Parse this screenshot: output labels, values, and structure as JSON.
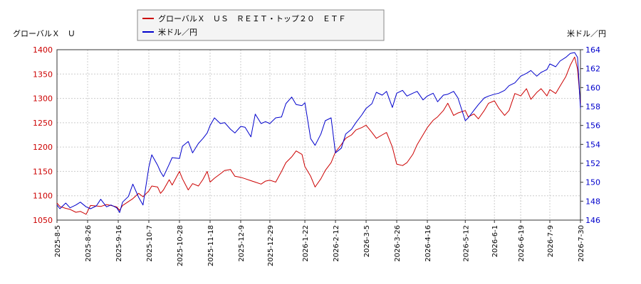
{
  "chart_data": {
    "type": "line",
    "title": "",
    "legend": {
      "placement": "top-center",
      "entries": [
        {
          "name": "グローバルＸ　ＵＳ　ＲＥＩＴ・トップ２０　ＥＴＦ",
          "color": "#cc0000"
        },
        {
          "name": "米ドル／円",
          "color": "#0000cc"
        }
      ]
    },
    "ylabel_left": "グローバルＸ　Ｕ",
    "ylabel_right": "米ドル／円",
    "ylim_left": [
      1050,
      1400
    ],
    "yticks_left": [
      "1050",
      "1100",
      "1150",
      "1200",
      "1250",
      "1300",
      "1350",
      "1400"
    ],
    "ylim_right": [
      146,
      164
    ],
    "yticks_right": [
      "146",
      "148",
      "150",
      "152",
      "154",
      "156",
      "158",
      "160",
      "162",
      "164"
    ],
    "xlim": [
      "2025-08-05",
      "2026-07-30"
    ],
    "xticks": [
      "2025-8-5",
      "2025-8-26",
      "2025-9-16",
      "2025-10-7",
      "2025-10-28",
      "2025-11-18",
      "2025-12-9",
      "2025-12-29",
      "2026-1-22",
      "2026-2-12",
      "2026-3-5",
      "2026-3-26",
      "2026-4-16",
      "2026-5-12",
      "2026-6-1",
      "2026-6-19",
      "2026-7-9",
      "2026-7-30"
    ],
    "grid": true,
    "series": [
      {
        "name": "グローバルＸ　ＵＳ　ＲＥＩＴ・トップ２０　ＥＴＦ",
        "axis": "left",
        "color": "#cc0000",
        "points": [
          [
            "2025-08-05",
            1085
          ],
          [
            "2025-08-07",
            1078
          ],
          [
            "2025-08-11",
            1074
          ],
          [
            "2025-08-14",
            1072
          ],
          [
            "2025-08-18",
            1066
          ],
          [
            "2025-08-21",
            1068
          ],
          [
            "2025-08-25",
            1062
          ],
          [
            "2025-08-28",
            1080
          ],
          [
            "2025-09-01",
            1079
          ],
          [
            "2025-09-04",
            1078
          ],
          [
            "2025-09-08",
            1082
          ],
          [
            "2025-09-11",
            1080
          ],
          [
            "2025-09-15",
            1077
          ],
          [
            "2025-09-17",
            1070
          ],
          [
            "2025-09-19",
            1080
          ],
          [
            "2025-09-23",
            1088
          ],
          [
            "2025-09-26",
            1094
          ],
          [
            "2025-09-30",
            1105
          ],
          [
            "2025-10-03",
            1098
          ],
          [
            "2025-10-07",
            1110
          ],
          [
            "2025-10-09",
            1120
          ],
          [
            "2025-10-13",
            1118
          ],
          [
            "2025-10-15",
            1105
          ],
          [
            "2025-10-17",
            1112
          ],
          [
            "2025-10-21",
            1133
          ],
          [
            "2025-10-23",
            1122
          ],
          [
            "2025-10-28",
            1150
          ],
          [
            "2025-10-30",
            1135
          ],
          [
            "2025-11-03",
            1112
          ],
          [
            "2025-11-06",
            1125
          ],
          [
            "2025-11-10",
            1120
          ],
          [
            "2025-11-13",
            1133
          ],
          [
            "2025-11-16",
            1150
          ],
          [
            "2025-11-18",
            1128
          ],
          [
            "2025-11-21",
            1136
          ],
          [
            "2025-11-25",
            1145
          ],
          [
            "2025-11-28",
            1152
          ],
          [
            "2025-12-02",
            1154
          ],
          [
            "2025-12-05",
            1140
          ],
          [
            "2025-12-09",
            1138
          ],
          [
            "2025-12-12",
            1135
          ],
          [
            "2025-12-16",
            1131
          ],
          [
            "2025-12-19",
            1128
          ],
          [
            "2025-12-23",
            1124
          ],
          [
            "2025-12-26",
            1130
          ],
          [
            "2025-12-29",
            1132
          ],
          [
            "2026-01-02",
            1128
          ],
          [
            "2026-01-06",
            1150
          ],
          [
            "2026-01-09",
            1168
          ],
          [
            "2026-01-13",
            1180
          ],
          [
            "2026-01-16",
            1192
          ],
          [
            "2026-01-20",
            1185
          ],
          [
            "2026-01-22",
            1160
          ],
          [
            "2026-01-26",
            1140
          ],
          [
            "2026-01-29",
            1118
          ],
          [
            "2026-02-02",
            1135
          ],
          [
            "2026-02-05",
            1152
          ],
          [
            "2026-02-09",
            1168
          ],
          [
            "2026-02-12",
            1190
          ],
          [
            "2026-02-16",
            1205
          ],
          [
            "2026-02-19",
            1218
          ],
          [
            "2026-02-23",
            1225
          ],
          [
            "2026-02-26",
            1235
          ],
          [
            "2026-03-02",
            1240
          ],
          [
            "2026-03-05",
            1245
          ],
          [
            "2026-03-09",
            1230
          ],
          [
            "2026-03-12",
            1218
          ],
          [
            "2026-03-16",
            1225
          ],
          [
            "2026-03-19",
            1230
          ],
          [
            "2026-03-23",
            1200
          ],
          [
            "2026-03-26",
            1165
          ],
          [
            "2026-03-30",
            1162
          ],
          [
            "2026-04-02",
            1168
          ],
          [
            "2026-04-06",
            1185
          ],
          [
            "2026-04-09",
            1205
          ],
          [
            "2026-04-13",
            1225
          ],
          [
            "2026-04-16",
            1240
          ],
          [
            "2026-04-20",
            1255
          ],
          [
            "2026-04-23",
            1262
          ],
          [
            "2026-04-27",
            1275
          ],
          [
            "2026-04-30",
            1290
          ],
          [
            "2026-05-04",
            1265
          ],
          [
            "2026-05-07",
            1270
          ],
          [
            "2026-05-12",
            1275
          ],
          [
            "2026-05-14",
            1262
          ],
          [
            "2026-05-18",
            1268
          ],
          [
            "2026-05-21",
            1258
          ],
          [
            "2026-05-25",
            1275
          ],
          [
            "2026-05-28",
            1290
          ],
          [
            "2026-06-01",
            1295
          ],
          [
            "2026-06-04",
            1280
          ],
          [
            "2026-06-08",
            1265
          ],
          [
            "2026-06-11",
            1275
          ],
          [
            "2026-06-15",
            1310
          ],
          [
            "2026-06-19",
            1305
          ],
          [
            "2026-06-23",
            1320
          ],
          [
            "2026-06-26",
            1298
          ],
          [
            "2026-06-30",
            1312
          ],
          [
            "2026-07-03",
            1320
          ],
          [
            "2026-07-07",
            1305
          ],
          [
            "2026-07-09",
            1318
          ],
          [
            "2026-07-13",
            1310
          ],
          [
            "2026-07-16",
            1325
          ],
          [
            "2026-07-20",
            1345
          ],
          [
            "2026-07-23",
            1368
          ],
          [
            "2026-07-26",
            1385
          ],
          [
            "2026-07-28",
            1360
          ],
          [
            "2026-07-30",
            1290
          ]
        ]
      },
      {
        "name": "米ドル／円",
        "axis": "right",
        "color": "#0000cc",
        "points": [
          [
            "2025-08-05",
            147.6
          ],
          [
            "2025-08-07",
            147.2
          ],
          [
            "2025-08-11",
            147.8
          ],
          [
            "2025-08-14",
            147.3
          ],
          [
            "2025-08-18",
            147.6
          ],
          [
            "2025-08-21",
            147.9
          ],
          [
            "2025-08-25",
            147.4
          ],
          [
            "2025-08-28",
            147.2
          ],
          [
            "2025-09-01",
            147.5
          ],
          [
            "2025-09-04",
            148.2
          ],
          [
            "2025-09-08",
            147.4
          ],
          [
            "2025-09-11",
            147.6
          ],
          [
            "2025-09-15",
            147.3
          ],
          [
            "2025-09-17",
            146.8
          ],
          [
            "2025-09-19",
            147.9
          ],
          [
            "2025-09-23",
            148.5
          ],
          [
            "2025-09-26",
            149.8
          ],
          [
            "2025-09-30",
            148.4
          ],
          [
            "2025-10-03",
            147.6
          ],
          [
            "2025-10-07",
            151.6
          ],
          [
            "2025-10-09",
            152.9
          ],
          [
            "2025-10-13",
            151.8
          ],
          [
            "2025-10-15",
            151.1
          ],
          [
            "2025-10-17",
            150.6
          ],
          [
            "2025-10-21",
            151.9
          ],
          [
            "2025-10-23",
            152.6
          ],
          [
            "2025-10-28",
            152.5
          ],
          [
            "2025-10-30",
            153.8
          ],
          [
            "2025-11-03",
            154.3
          ],
          [
            "2025-11-06",
            153.1
          ],
          [
            "2025-11-10",
            154.1
          ],
          [
            "2025-11-13",
            154.6
          ],
          [
            "2025-11-16",
            155.2
          ],
          [
            "2025-11-18",
            156.0
          ],
          [
            "2025-11-21",
            156.8
          ],
          [
            "2025-11-25",
            156.2
          ],
          [
            "2025-11-28",
            156.3
          ],
          [
            "2025-12-02",
            155.6
          ],
          [
            "2025-12-05",
            155.2
          ],
          [
            "2025-12-09",
            155.9
          ],
          [
            "2025-12-12",
            155.8
          ],
          [
            "2025-12-16",
            154.8
          ],
          [
            "2025-12-19",
            157.2
          ],
          [
            "2025-12-23",
            156.2
          ],
          [
            "2025-12-26",
            156.4
          ],
          [
            "2025-12-29",
            156.2
          ],
          [
            "2026-01-02",
            156.8
          ],
          [
            "2026-01-06",
            156.9
          ],
          [
            "2026-01-09",
            158.3
          ],
          [
            "2026-01-13",
            159.0
          ],
          [
            "2026-01-16",
            158.2
          ],
          [
            "2026-01-20",
            158.1
          ],
          [
            "2026-01-22",
            158.4
          ],
          [
            "2026-01-26",
            154.6
          ],
          [
            "2026-01-29",
            153.9
          ],
          [
            "2026-02-02",
            155.1
          ],
          [
            "2026-02-05",
            156.5
          ],
          [
            "2026-02-09",
            156.8
          ],
          [
            "2026-02-12",
            153.1
          ],
          [
            "2026-02-16",
            153.6
          ],
          [
            "2026-02-19",
            155.1
          ],
          [
            "2026-02-23",
            155.6
          ],
          [
            "2026-02-26",
            156.3
          ],
          [
            "2026-03-02",
            157.1
          ],
          [
            "2026-03-05",
            157.8
          ],
          [
            "2026-03-09",
            158.3
          ],
          [
            "2026-03-12",
            159.5
          ],
          [
            "2026-03-16",
            159.2
          ],
          [
            "2026-03-19",
            159.6
          ],
          [
            "2026-03-23",
            157.9
          ],
          [
            "2026-03-26",
            159.4
          ],
          [
            "2026-03-30",
            159.7
          ],
          [
            "2026-04-02",
            159.1
          ],
          [
            "2026-04-06",
            159.4
          ],
          [
            "2026-04-09",
            159.6
          ],
          [
            "2026-04-13",
            158.7
          ],
          [
            "2026-04-16",
            159.1
          ],
          [
            "2026-04-20",
            159.4
          ],
          [
            "2026-04-23",
            158.5
          ],
          [
            "2026-04-27",
            159.2
          ],
          [
            "2026-04-30",
            159.3
          ],
          [
            "2026-05-04",
            159.6
          ],
          [
            "2026-05-07",
            158.9
          ],
          [
            "2026-05-12",
            156.5
          ],
          [
            "2026-05-14",
            156.8
          ],
          [
            "2026-05-18",
            157.6
          ],
          [
            "2026-05-21",
            158.2
          ],
          [
            "2026-05-25",
            158.9
          ],
          [
            "2026-05-28",
            159.1
          ],
          [
            "2026-06-01",
            159.3
          ],
          [
            "2026-06-04",
            159.4
          ],
          [
            "2026-06-08",
            159.7
          ],
          [
            "2026-06-11",
            160.2
          ],
          [
            "2026-06-15",
            160.5
          ],
          [
            "2026-06-19",
            161.2
          ],
          [
            "2026-06-23",
            161.5
          ],
          [
            "2026-06-26",
            161.8
          ],
          [
            "2026-06-30",
            161.2
          ],
          [
            "2026-07-03",
            161.6
          ],
          [
            "2026-07-07",
            161.9
          ],
          [
            "2026-07-09",
            162.5
          ],
          [
            "2026-07-13",
            162.2
          ],
          [
            "2026-07-16",
            162.8
          ],
          [
            "2026-07-20",
            163.2
          ],
          [
            "2026-07-23",
            163.6
          ],
          [
            "2026-07-26",
            163.7
          ],
          [
            "2026-07-28",
            163.2
          ],
          [
            "2026-07-30",
            157.8
          ]
        ]
      }
    ]
  }
}
